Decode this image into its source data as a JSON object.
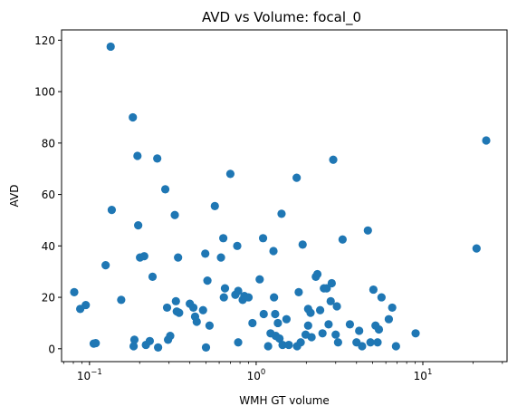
{
  "chart_data": {
    "type": "scatter",
    "title": "AVD vs Volume: focal_0",
    "xlabel": "WMH GT volume",
    "ylabel": "AVD",
    "xscale": "log",
    "xlim": [
      0.068,
      32
    ],
    "ylim": [
      -5,
      124
    ],
    "grid": false,
    "marker_color": "#1f77b4",
    "x_ticks": [
      {
        "value": 0.1,
        "base": "10",
        "exp": "−1"
      },
      {
        "value": 1,
        "base": "10",
        "exp": "0"
      },
      {
        "value": 10,
        "base": "10",
        "exp": "1"
      }
    ],
    "y_ticks": [
      0,
      20,
      40,
      60,
      80,
      100,
      120
    ],
    "points": [
      [
        0.081,
        22
      ],
      [
        0.088,
        15.5
      ],
      [
        0.095,
        17
      ],
      [
        0.106,
        2
      ],
      [
        0.109,
        2.2
      ],
      [
        0.125,
        32.5
      ],
      [
        0.134,
        117.5
      ],
      [
        0.136,
        54
      ],
      [
        0.155,
        19
      ],
      [
        0.182,
        90
      ],
      [
        0.184,
        1
      ],
      [
        0.186,
        3.5
      ],
      [
        0.194,
        75
      ],
      [
        0.196,
        48
      ],
      [
        0.201,
        35.5
      ],
      [
        0.213,
        36
      ],
      [
        0.218,
        1.5
      ],
      [
        0.23,
        3
      ],
      [
        0.239,
        28
      ],
      [
        0.255,
        74
      ],
      [
        0.258,
        0.5
      ],
      [
        0.285,
        62
      ],
      [
        0.292,
        16
      ],
      [
        0.296,
        3.5
      ],
      [
        0.305,
        5
      ],
      [
        0.325,
        52
      ],
      [
        0.33,
        18.5
      ],
      [
        0.334,
        14.5
      ],
      [
        0.34,
        35.5
      ],
      [
        0.345,
        14
      ],
      [
        0.4,
        17.5
      ],
      [
        0.42,
        16
      ],
      [
        0.43,
        12.5
      ],
      [
        0.44,
        10.5
      ],
      [
        0.48,
        15
      ],
      [
        0.495,
        37
      ],
      [
        0.5,
        0.5
      ],
      [
        0.51,
        26.5
      ],
      [
        0.525,
        9
      ],
      [
        0.565,
        55.5
      ],
      [
        0.615,
        35.5
      ],
      [
        0.635,
        43
      ],
      [
        0.64,
        20
      ],
      [
        0.65,
        23.5
      ],
      [
        0.7,
        68
      ],
      [
        0.75,
        21
      ],
      [
        0.77,
        40
      ],
      [
        0.78,
        2.5
      ],
      [
        0.78,
        22.5
      ],
      [
        0.83,
        19
      ],
      [
        0.85,
        20.5
      ],
      [
        0.9,
        20
      ],
      [
        0.95,
        10
      ],
      [
        1.05,
        27
      ],
      [
        1.1,
        43
      ],
      [
        1.11,
        13.5
      ],
      [
        1.18,
        1
      ],
      [
        1.22,
        6
      ],
      [
        1.27,
        38
      ],
      [
        1.28,
        20
      ],
      [
        1.3,
        13.5
      ],
      [
        1.31,
        5
      ],
      [
        1.35,
        10
      ],
      [
        1.38,
        4
      ],
      [
        1.42,
        52.5
      ],
      [
        1.44,
        1.5
      ],
      [
        1.52,
        11.5
      ],
      [
        1.57,
        1.5
      ],
      [
        1.75,
        66.5
      ],
      [
        1.76,
        1
      ],
      [
        1.8,
        22
      ],
      [
        1.85,
        2.5
      ],
      [
        1.9,
        40.5
      ],
      [
        1.98,
        5.5
      ],
      [
        2.05,
        9
      ],
      [
        2.05,
        15.5
      ],
      [
        2.12,
        14
      ],
      [
        2.15,
        4.5
      ],
      [
        2.28,
        28
      ],
      [
        2.33,
        29
      ],
      [
        2.42,
        15
      ],
      [
        2.5,
        6
      ],
      [
        2.55,
        23.5
      ],
      [
        2.65,
        23.5
      ],
      [
        2.72,
        9.5
      ],
      [
        2.8,
        18.5
      ],
      [
        2.84,
        25.5
      ],
      [
        2.9,
        73.5
      ],
      [
        3.0,
        5.5
      ],
      [
        3.05,
        16.5
      ],
      [
        3.1,
        2.5
      ],
      [
        3.3,
        42.5
      ],
      [
        3.65,
        9.5
      ],
      [
        4.0,
        2.5
      ],
      [
        4.15,
        7
      ],
      [
        4.32,
        1
      ],
      [
        4.68,
        46
      ],
      [
        4.85,
        2.5
      ],
      [
        5.05,
        23
      ],
      [
        5.2,
        9
      ],
      [
        5.35,
        2.5
      ],
      [
        5.45,
        7.5
      ],
      [
        5.65,
        20
      ],
      [
        6.25,
        11.5
      ],
      [
        6.55,
        16
      ],
      [
        6.9,
        1
      ],
      [
        9.05,
        6
      ],
      [
        21.0,
        39
      ],
      [
        24.0,
        81
      ]
    ]
  }
}
